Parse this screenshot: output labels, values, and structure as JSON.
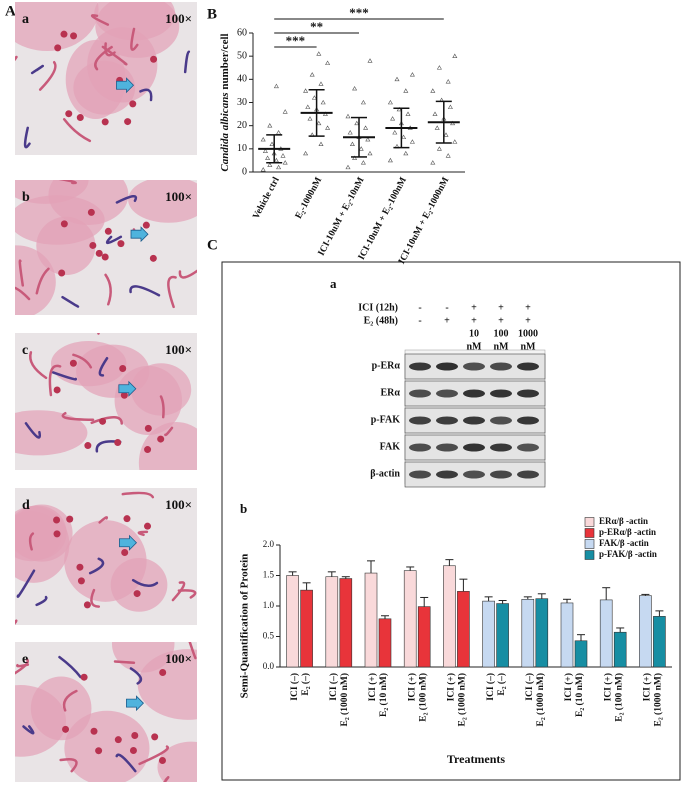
{
  "panel_labels": [
    "A",
    "B",
    "C"
  ],
  "micrographs": [
    {
      "label": "a",
      "magnification": "100×"
    },
    {
      "label": "b",
      "magnification": "100×"
    },
    {
      "label": "c",
      "magnification": "100×"
    },
    {
      "label": "d",
      "magnification": "100×"
    },
    {
      "label": "e",
      "magnification": "100×"
    }
  ],
  "blot": {
    "label": "a",
    "conditions": [
      {
        "name": "ICI (12h)",
        "lanes": [
          "-",
          "-",
          "+",
          "+",
          "+"
        ]
      },
      {
        "name": "E₂ (48h)",
        "lanes": [
          "-",
          "+",
          "+",
          "+",
          "+"
        ]
      }
    ],
    "doses": [
      [
        "10",
        "nM"
      ],
      [
        "100",
        "nM"
      ],
      [
        "1000",
        "nM"
      ]
    ],
    "rows": [
      "p-ERα",
      "ERα",
      "p-FAK",
      "FAK",
      "β-actin"
    ]
  },
  "chart_data": [
    {
      "type": "dot-plot",
      "categories": [
        "Vehicle ctrl",
        "E₂-1000nM",
        "ICI-10uM + E₂-10nM",
        "ICI-10uM + E₂-100nM",
        "ICI-10uM + E₂-1000nM"
      ],
      "ylabel": {
        "italic": "Candida albicans",
        "rest": "number/cell"
      },
      "ylim": [
        0,
        60
      ],
      "yticks": [
        0,
        10,
        20,
        30,
        40,
        50,
        60
      ],
      "color": "#555555",
      "points": [
        [
          1,
          2,
          3,
          4,
          5,
          6,
          7,
          8,
          9,
          10,
          12,
          14,
          17,
          20,
          26,
          37
        ],
        [
          8,
          12,
          16,
          19,
          21,
          23,
          25,
          27,
          28,
          30,
          32,
          35,
          38,
          42,
          47,
          51
        ],
        [
          2,
          4,
          6,
          8,
          10,
          12,
          14,
          15,
          17,
          19,
          21,
          24,
          30,
          36,
          48
        ],
        [
          5,
          8,
          11,
          13,
          15,
          17,
          19,
          21,
          23,
          25,
          27,
          30,
          35,
          40,
          42
        ],
        [
          4,
          7,
          10,
          13,
          16,
          19,
          21,
          23,
          25,
          28,
          31,
          35,
          39,
          45,
          50
        ]
      ],
      "means": [
        10,
        25.5,
        15,
        19,
        21.5
      ],
      "sd": [
        6,
        10,
        8.5,
        8.5,
        9
      ],
      "significance": [
        {
          "label": "***",
          "between": [
            0,
            1
          ]
        },
        {
          "label": "**",
          "between": [
            0,
            2
          ]
        },
        {
          "label": "***",
          "between": [
            0,
            4
          ]
        }
      ]
    },
    {
      "type": "bar",
      "label": "b",
      "categories": [
        [
          "ICI (–)",
          "E₂ (–)"
        ],
        [
          "ICI (–)",
          "E₂ (1000 nM)"
        ],
        [
          "ICI (+)",
          "E₂ (10 nM)"
        ],
        [
          "ICI (+)",
          "E₂ (100 nM)"
        ],
        [
          "ICI (+)",
          "E₂ (1000 nM)"
        ],
        [
          "ICI (–)",
          "E₂ (–)"
        ],
        [
          "ICI (–)",
          "E₂ (1000 nM)"
        ],
        [
          "ICI (+)",
          "E₂ (10 nM)"
        ],
        [
          "ICI (+)",
          "E₂ (100 nM)"
        ],
        [
          "ICI (+)",
          "E₂ (1000 nM)"
        ]
      ],
      "series": [
        {
          "name": "ERα/β -actin",
          "color": "#f9d9da",
          "values": [
            1.5,
            1.48,
            1.54,
            1.58,
            1.66,
            null,
            null,
            null,
            null,
            null
          ],
          "errors": [
            0.06,
            0.08,
            0.2,
            0.06,
            0.1,
            null,
            null,
            null,
            null,
            null
          ]
        },
        {
          "name": "p-ERα/β -actin",
          "color": "#e8343a",
          "values": [
            1.26,
            1.45,
            0.79,
            0.99,
            1.24,
            null,
            null,
            null,
            null,
            null
          ],
          "errors": [
            0.12,
            0.03,
            0.05,
            0.15,
            0.2,
            null,
            null,
            null,
            null,
            null
          ]
        },
        {
          "name": "FAK/β -actin",
          "color": "#c6d9f1",
          "values": [
            null,
            null,
            null,
            null,
            null,
            1.08,
            1.11,
            1.05,
            1.1,
            1.17
          ],
          "errors": [
            null,
            null,
            null,
            null,
            null,
            0.07,
            0.04,
            0.06,
            0.2,
            0.02
          ]
        },
        {
          "name": "p-FAK/β -actin",
          "color": "#178ea3",
          "values": [
            null,
            null,
            null,
            null,
            null,
            1.04,
            1.12,
            0.43,
            0.57,
            0.83
          ],
          "errors": [
            null,
            null,
            null,
            null,
            null,
            0.05,
            0.08,
            0.1,
            0.07,
            0.09
          ]
        }
      ],
      "ylim": [
        0,
        2
      ],
      "yticks": [
        {
          "value": 0,
          "label": "0.0"
        },
        {
          "value": 0.5,
          "label": "0.5"
        },
        {
          "value": 1,
          "label": "1.0"
        },
        {
          "value": 1.5,
          "label": "1.5"
        },
        {
          "value": 2,
          "label": "2.0"
        }
      ],
      "ylabel": "Semi-Quantification of Protein",
      "xlabel": "Treatments",
      "legend": "top-right"
    }
  ]
}
